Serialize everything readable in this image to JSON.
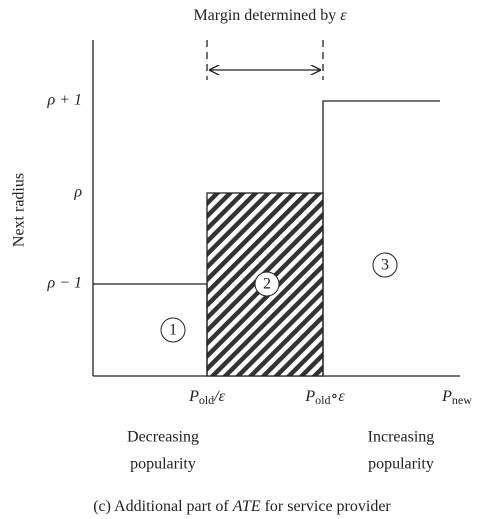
{
  "title": {
    "text": "Margin determined by ",
    "symbol": "ε"
  },
  "y_axis_label": "Next radius",
  "y_levels": [
    "ρ + 1",
    "ρ",
    "ρ − 1"
  ],
  "regions": [
    "1",
    "2",
    "3"
  ],
  "x_labels": [
    {
      "main": "P",
      "sub": "old",
      "suffix": "/ε"
    },
    {
      "main": "P",
      "sub": "old",
      "suffix": "∘ε"
    },
    {
      "main": "P",
      "sub": "new",
      "suffix": ""
    }
  ],
  "annotations": [
    {
      "line1": "Decreasing",
      "line2": "popularity"
    },
    {
      "line1": "Increasing",
      "line2": "popularity"
    }
  ],
  "caption": {
    "before": "(c) Additional part of ",
    "italic": "ATE",
    "after": " for service provider"
  }
}
